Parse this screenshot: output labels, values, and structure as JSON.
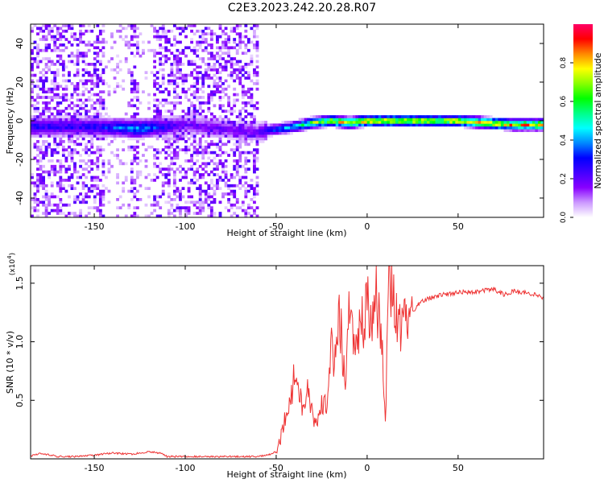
{
  "title": "C2E3.2023.242.20.28.R07",
  "chart_data": [
    {
      "type": "heatmap",
      "xlabel": "Height of straight line (km)",
      "ylabel": "Frequency (Hz)",
      "xlim": [
        -185,
        97
      ],
      "ylim": [
        -50,
        50
      ],
      "x_ticks": [
        -150,
        -100,
        -50,
        0,
        50
      ],
      "y_ticks": [
        -40,
        -20,
        0,
        20,
        40
      ],
      "colorbar": {
        "label": "Normalized spectral amplitude",
        "range": [
          0.0,
          1.0
        ],
        "ticks": [
          0.0,
          0.2,
          0.4,
          0.6,
          0.8
        ],
        "colors": [
          "#ffffff",
          "#cc99ff",
          "#8800ff",
          "#4400ff",
          "#0000ff",
          "#0088ff",
          "#00ffff",
          "#00ff88",
          "#00ff00",
          "#88ff00",
          "#ffff00",
          "#ff8800",
          "#ff0000",
          "#ff0066"
        ]
      },
      "ridge": {
        "x": [
          -185,
          -150,
          -125,
          -100,
          -60,
          -55,
          -40,
          -30,
          -20,
          -10,
          0,
          20,
          50,
          80,
          97
        ],
        "frequency": [
          -3,
          -3,
          -4,
          -2,
          -6,
          -5,
          -3,
          -1,
          0,
          -1,
          0,
          0,
          0,
          -2,
          -2
        ],
        "peak_amplitude": [
          0.3,
          0.3,
          0.45,
          0.2,
          0.2,
          0.35,
          0.5,
          0.7,
          0.8,
          0.85,
          0.9,
          0.85,
          0.85,
          0.9,
          0.9
        ]
      }
    },
    {
      "type": "line",
      "xlabel": "Height of straight line (km)",
      "ylabel": "SNR (10 * v/v)",
      "y_scale_label": "(x10",
      "y_scale_exp": "4",
      "y_scale_suffix": ")",
      "xlim": [
        -185,
        97
      ],
      "ylim": [
        0,
        1.65
      ],
      "x_ticks": [
        -150,
        -100,
        -50,
        0,
        50
      ],
      "y_ticks": [
        0.5,
        1.0,
        1.5
      ],
      "y_tick_labels": [
        "0.5",
        "1.0",
        "1.5"
      ],
      "line_color": "#ee3333",
      "series": [
        {
          "x": [
            -185,
            -180,
            -170,
            -160,
            -150,
            -140,
            -130,
            -120,
            -114,
            -110,
            -100,
            -90,
            -80,
            -70,
            -60,
            -55,
            -50,
            -48,
            -45,
            -42,
            -40,
            -38,
            -35,
            -32,
            -30,
            -28,
            -25,
            -22,
            -20,
            -18,
            -15,
            -12,
            -10,
            -8,
            -5,
            -2,
            0,
            2,
            5,
            8,
            10,
            12,
            15,
            18,
            20,
            25,
            30,
            40,
            50,
            60,
            70,
            75,
            80,
            90,
            97
          ],
          "values": [
            0.02,
            0.05,
            0.02,
            0.02,
            0.03,
            0.05,
            0.04,
            0.06,
            0.05,
            0.02,
            0.02,
            0.02,
            0.02,
            0.02,
            0.02,
            0.03,
            0.06,
            0.15,
            0.35,
            0.5,
            0.7,
            0.55,
            0.45,
            0.6,
            0.35,
            0.3,
            0.5,
            0.45,
            1.0,
            0.8,
            1.2,
            0.6,
            1.3,
            1.0,
            1.05,
            1.2,
            1.45,
            1.2,
            1.4,
            1.1,
            0.35,
            1.5,
            1.3,
            1.2,
            1.1,
            1.25,
            1.35,
            1.4,
            1.42,
            1.43,
            1.45,
            1.4,
            1.43,
            1.41,
            1.38
          ]
        }
      ]
    }
  ]
}
